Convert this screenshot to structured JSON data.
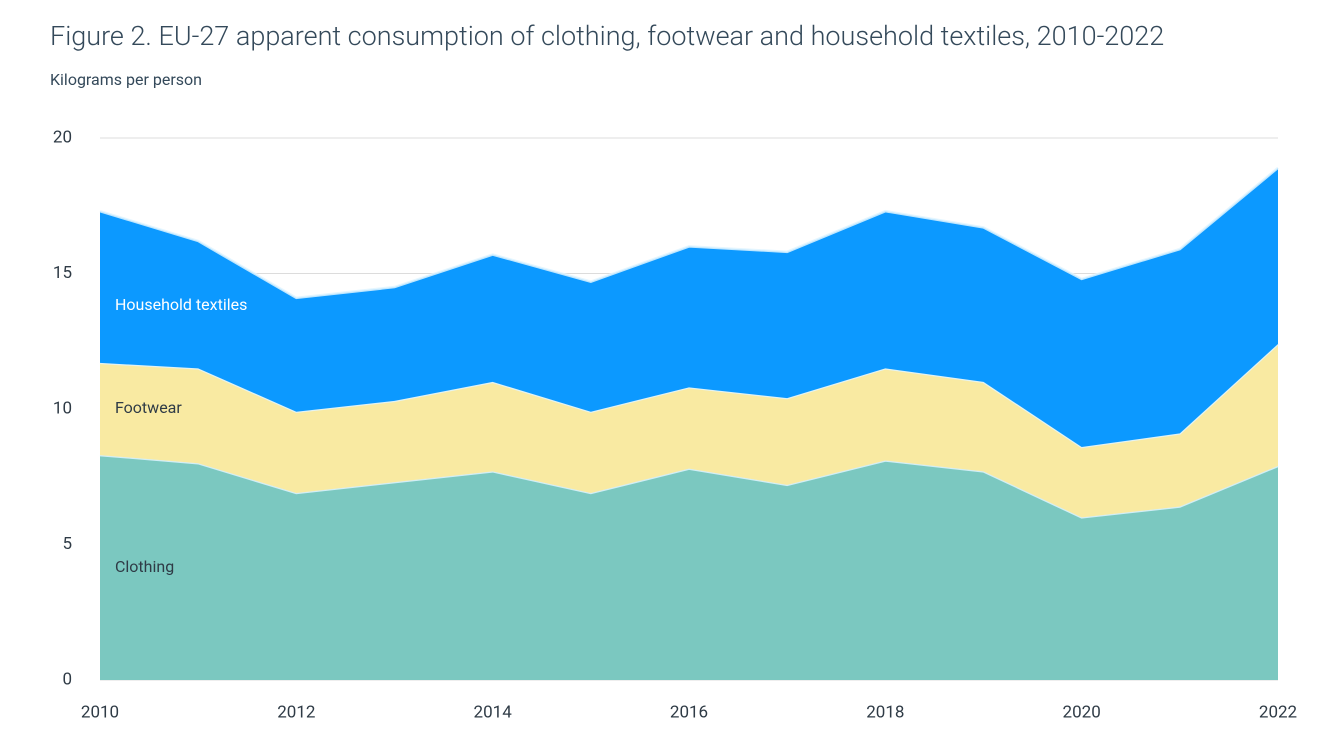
{
  "chart_data": {
    "type": "stacked-area",
    "title": "Figure 2. EU-27 apparent consumption of clothing, footwear and household textiles, 2010-2022",
    "subtitle": "Kilograms per person",
    "x": [
      2010,
      2011,
      2012,
      2013,
      2014,
      2015,
      2016,
      2017,
      2018,
      2019,
      2020,
      2021,
      2022
    ],
    "series": [
      {
        "name": "Clothing",
        "color": "#7bc8c0",
        "values": [
          8.3,
          8.0,
          6.9,
          7.3,
          7.7,
          6.9,
          7.8,
          7.2,
          8.1,
          7.7,
          6.0,
          6.4,
          7.9
        ]
      },
      {
        "name": "Footwear",
        "color": "#f9eaa2",
        "values": [
          3.4,
          3.5,
          3.0,
          3.0,
          3.3,
          3.0,
          3.0,
          3.2,
          3.4,
          3.3,
          2.6,
          2.7,
          4.5
        ]
      },
      {
        "name": "Household textiles",
        "color": "#0c99ff",
        "values": [
          5.6,
          4.7,
          4.2,
          4.2,
          4.7,
          4.8,
          5.2,
          5.4,
          5.8,
          5.7,
          6.2,
          6.8,
          6.5
        ]
      }
    ],
    "xlim": [
      2010,
      2022
    ],
    "xticks": [
      2010,
      2012,
      2014,
      2016,
      2018,
      2020,
      2022
    ],
    "ylim": [
      0,
      20
    ],
    "yticks": [
      0,
      5,
      10,
      15,
      20
    ],
    "grid": true
  }
}
